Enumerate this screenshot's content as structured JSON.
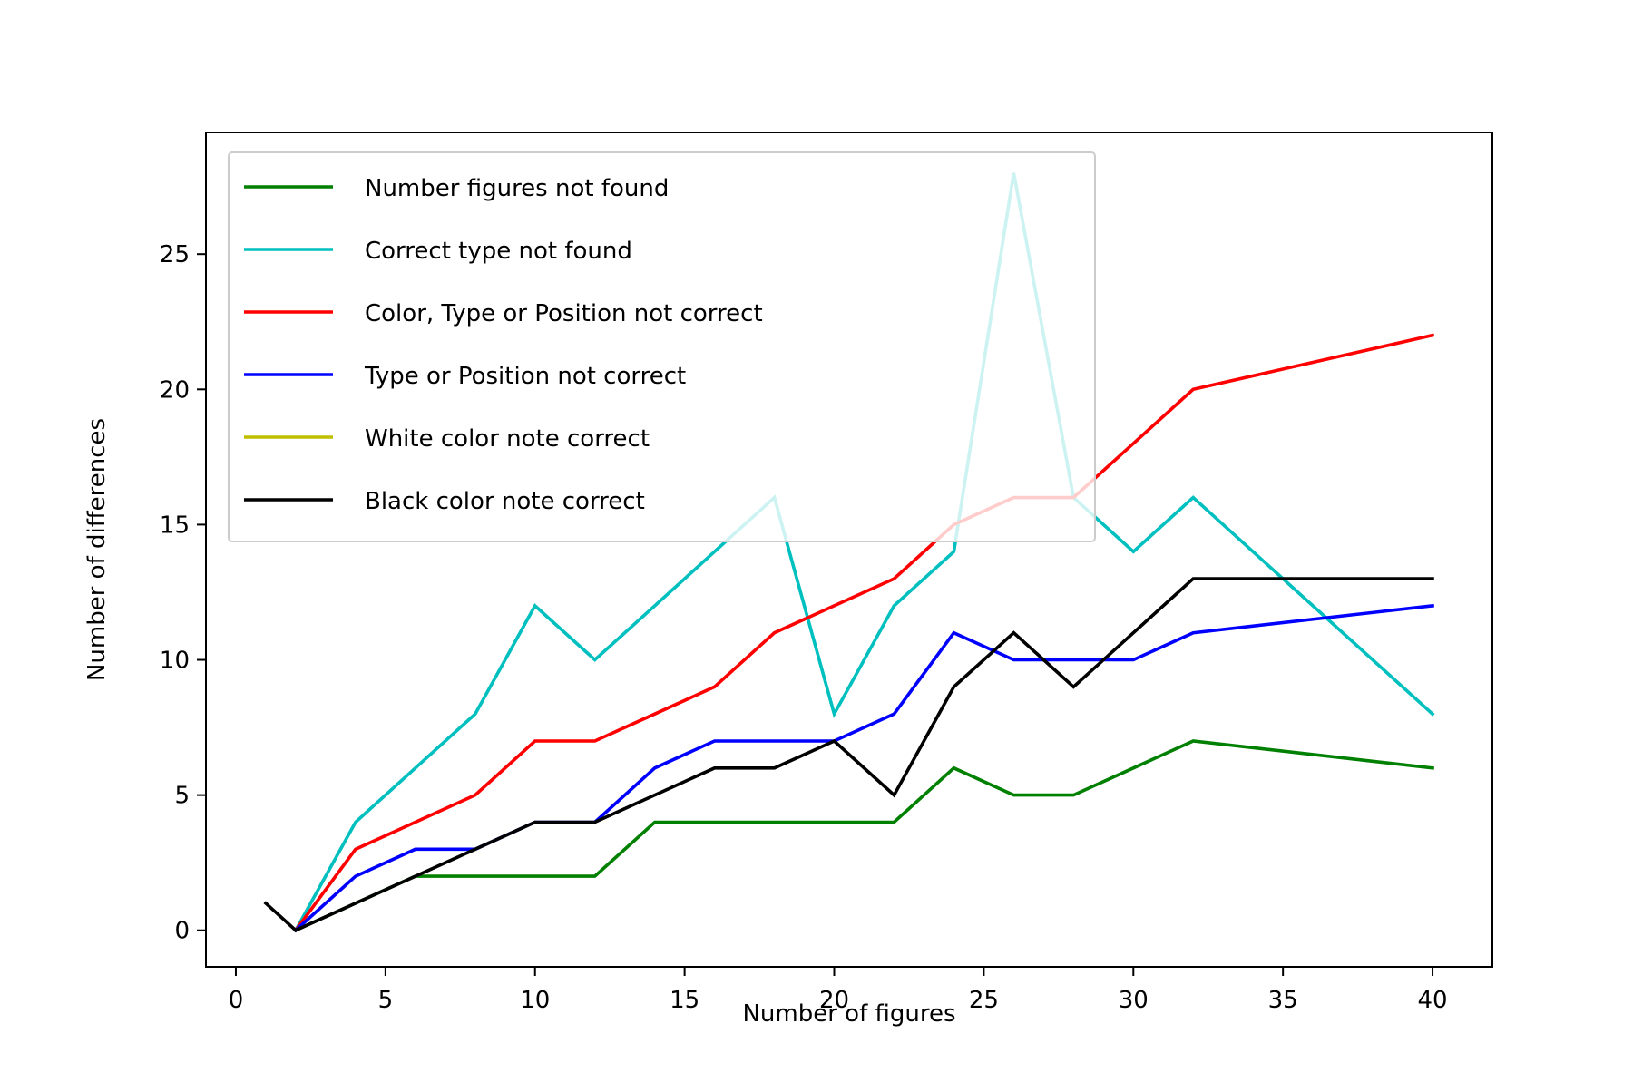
{
  "chart_data": {
    "type": "line",
    "title": "",
    "xlabel": "Number of figures",
    "ylabel": "Number of differences",
    "xlim": [
      -1,
      42
    ],
    "ylim": [
      -1.35,
      29.5
    ],
    "xticks": [
      0,
      5,
      10,
      15,
      20,
      25,
      30,
      35,
      40
    ],
    "yticks": [
      0,
      5,
      10,
      15,
      20,
      25
    ],
    "grid": false,
    "legend_position": "upper-left",
    "series": [
      {
        "name": "Number figures not found",
        "color": "#008000",
        "x": [
          2,
          4,
          6,
          8,
          10,
          12,
          14,
          16,
          18,
          20,
          22,
          24,
          26,
          28,
          30,
          32,
          40
        ],
        "y": [
          0,
          1,
          2,
          2,
          2,
          2,
          4,
          4,
          4,
          4,
          4,
          6,
          5,
          5,
          6,
          7,
          6
        ]
      },
      {
        "name": "Correct type not found",
        "color": "#00bfbf",
        "x": [
          2,
          4,
          6,
          8,
          10,
          12,
          14,
          16,
          18,
          20,
          22,
          24,
          26,
          28,
          30,
          32,
          40
        ],
        "y": [
          0,
          4,
          6,
          8,
          12,
          10,
          12,
          14,
          16,
          8,
          12,
          14,
          28,
          16,
          14,
          16,
          8
        ]
      },
      {
        "name": "Color, Type or Position not correct",
        "color": "#ff0000",
        "x": [
          2,
          4,
          6,
          8,
          10,
          12,
          14,
          16,
          18,
          20,
          22,
          24,
          26,
          28,
          30,
          32,
          40
        ],
        "y": [
          0,
          3,
          4,
          5,
          7,
          7,
          8,
          9,
          11,
          12,
          13,
          15,
          16,
          16,
          18,
          20,
          22
        ]
      },
      {
        "name": "Type or Position not correct",
        "color": "#0000ff",
        "x": [
          2,
          4,
          6,
          8,
          10,
          12,
          14,
          16,
          18,
          20,
          22,
          24,
          26,
          28,
          30,
          32,
          40
        ],
        "y": [
          0,
          2,
          3,
          3,
          4,
          4,
          6,
          7,
          7,
          7,
          8,
          11,
          10,
          10,
          10,
          11,
          12
        ]
      },
      {
        "name": "White color note correct",
        "color": "#bfbf00",
        "x": [],
        "y": []
      },
      {
        "name": "Black color note correct",
        "color": "#000000",
        "x": [
          1,
          2,
          4,
          6,
          8,
          10,
          12,
          14,
          16,
          18,
          20,
          22,
          24,
          26,
          28,
          30,
          32,
          40
        ],
        "y": [
          1,
          0,
          1,
          2,
          3,
          4,
          4,
          5,
          6,
          6,
          7,
          5,
          9,
          11,
          9,
          11,
          13,
          13
        ]
      }
    ]
  }
}
